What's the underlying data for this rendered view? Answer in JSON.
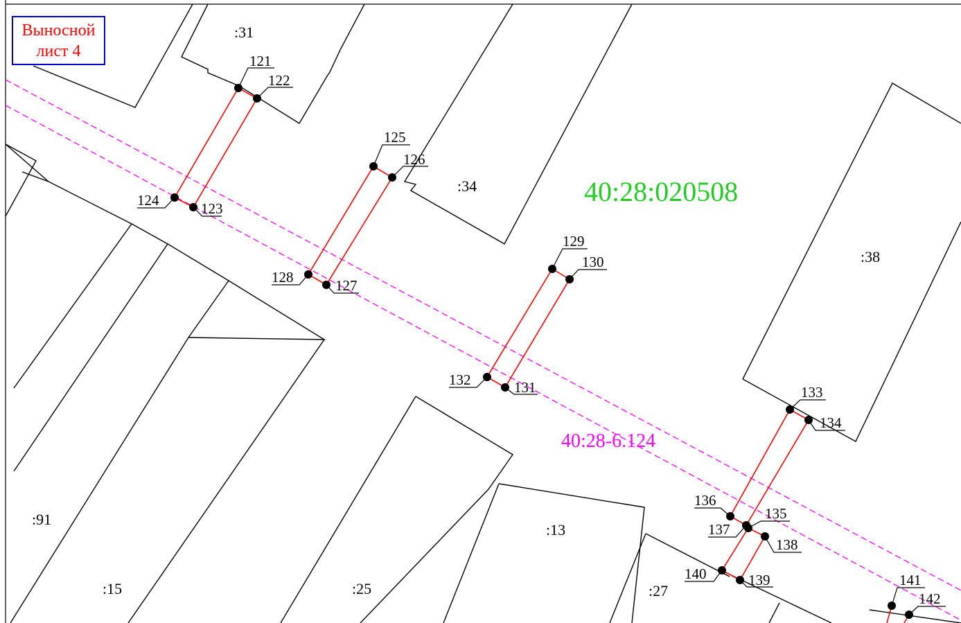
{
  "sheet_label": {
    "line1": "Выносной",
    "line2": "лист 4"
  },
  "block_number": "40:28:020508",
  "zone_label": "40:28-6.124",
  "parcels": [
    ":31",
    ":34",
    ":38",
    ":91",
    ":15",
    ":25",
    ":13",
    ":27"
  ],
  "points": [
    "121",
    "122",
    "123",
    "124",
    "125",
    "126",
    "127",
    "128",
    "129",
    "130",
    "131",
    "132",
    "133",
    "134",
    "135",
    "136",
    "137",
    "138",
    "139",
    "140",
    "141",
    "142"
  ],
  "colors": {
    "parcel_boundary": "#000000",
    "zone_boundary": "#ff00ff",
    "point_segment": "#ff0000",
    "block_label": "#22cc22",
    "sheet_frame": "#0000cc",
    "sheet_text": "#ff0000"
  }
}
